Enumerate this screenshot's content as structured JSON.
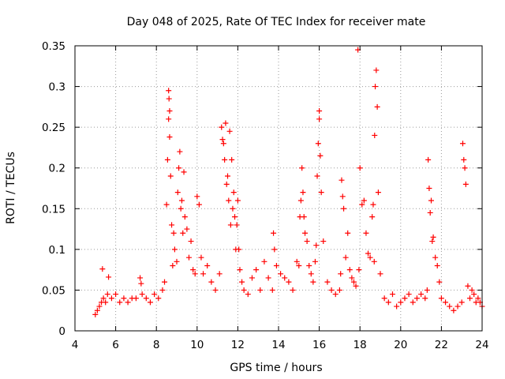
{
  "chart_data": {
    "type": "scatter",
    "title": "Day 048 of 2025, Rate Of TEC Index for receiver mate",
    "xlabel": "GPS time / hours",
    "ylabel": "ROTI / TECUs",
    "xlim": [
      4,
      24
    ],
    "ylim": [
      0,
      0.35
    ],
    "xticks": [
      4,
      6,
      8,
      10,
      12,
      14,
      16,
      18,
      20,
      22,
      24
    ],
    "yticks": [
      0,
      0.05,
      0.1,
      0.15,
      0.2,
      0.25,
      0.3,
      0.35
    ],
    "xtick_labels": [
      "4",
      "6",
      "8",
      "10",
      "12",
      "14",
      "16",
      "18",
      "20",
      "22",
      "24"
    ],
    "ytick_labels": [
      "0",
      "0.05",
      "0.1",
      "0.15",
      "0.2",
      "0.25",
      "0.3",
      "0.35"
    ],
    "grid": true,
    "marker": "+",
    "color": "#ff0000",
    "series": [
      {
        "name": "ROTI",
        "x": [
          5.0,
          5.1,
          5.2,
          5.3,
          5.35,
          5.4,
          5.5,
          5.6,
          5.65,
          5.8,
          6.0,
          6.2,
          6.4,
          6.6,
          6.8,
          7.0,
          7.2,
          7.25,
          7.3,
          7.5,
          7.7,
          7.9,
          8.1,
          8.3,
          8.4,
          8.5,
          8.55,
          8.6,
          8.6,
          8.62,
          8.65,
          8.65,
          8.7,
          8.75,
          8.8,
          8.85,
          8.9,
          9.0,
          9.05,
          9.1,
          9.15,
          9.2,
          9.25,
          9.3,
          9.35,
          9.4,
          9.5,
          9.6,
          9.7,
          9.8,
          9.9,
          10.0,
          10.1,
          10.2,
          10.3,
          10.5,
          10.7,
          10.9,
          11.1,
          11.2,
          11.25,
          11.3,
          11.35,
          11.4,
          11.45,
          11.5,
          11.55,
          11.6,
          11.65,
          11.7,
          11.75,
          11.8,
          11.85,
          11.9,
          11.95,
          12.0,
          12.05,
          12.1,
          12.2,
          12.3,
          12.5,
          12.7,
          12.9,
          13.1,
          13.3,
          13.5,
          13.7,
          13.75,
          13.8,
          13.9,
          14.1,
          14.3,
          14.5,
          14.7,
          14.9,
          15.0,
          15.05,
          15.1,
          15.15,
          15.2,
          15.25,
          15.3,
          15.4,
          15.5,
          15.6,
          15.7,
          15.8,
          15.85,
          15.9,
          15.95,
          16.0,
          16.0,
          16.05,
          16.1,
          16.2,
          16.4,
          16.6,
          16.8,
          17.0,
          17.05,
          17.1,
          17.15,
          17.2,
          17.3,
          17.4,
          17.5,
          17.6,
          17.7,
          17.8,
          17.9,
          17.95,
          18.0,
          18.1,
          18.2,
          18.3,
          18.4,
          18.5,
          18.6,
          18.65,
          18.7,
          18.72,
          18.75,
          18.8,
          18.85,
          18.9,
          19.0,
          19.2,
          19.4,
          19.6,
          19.8,
          20.0,
          20.2,
          20.4,
          20.6,
          20.8,
          21.0,
          21.2,
          21.3,
          21.35,
          21.4,
          21.45,
          21.5,
          21.55,
          21.6,
          21.7,
          21.8,
          21.9,
          22.0,
          22.2,
          22.4,
          22.6,
          22.8,
          23.0,
          23.05,
          23.1,
          23.15,
          23.2,
          23.3,
          23.4,
          23.5,
          23.6,
          23.7,
          23.8,
          23.9,
          24.0
        ],
        "y": [
          0.02,
          0.025,
          0.03,
          0.035,
          0.076,
          0.04,
          0.035,
          0.045,
          0.066,
          0.04,
          0.045,
          0.035,
          0.04,
          0.035,
          0.04,
          0.04,
          0.065,
          0.058,
          0.045,
          0.04,
          0.035,
          0.045,
          0.04,
          0.05,
          0.06,
          0.155,
          0.21,
          0.26,
          0.295,
          0.285,
          0.27,
          0.238,
          0.19,
          0.13,
          0.08,
          0.12,
          0.1,
          0.085,
          0.17,
          0.2,
          0.22,
          0.15,
          0.16,
          0.12,
          0.195,
          0.14,
          0.125,
          0.09,
          0.11,
          0.075,
          0.07,
          0.165,
          0.155,
          0.09,
          0.07,
          0.08,
          0.06,
          0.05,
          0.07,
          0.25,
          0.235,
          0.23,
          0.21,
          0.255,
          0.18,
          0.19,
          0.16,
          0.245,
          0.13,
          0.21,
          0.15,
          0.17,
          0.14,
          0.1,
          0.13,
          0.16,
          0.1,
          0.075,
          0.06,
          0.05,
          0.045,
          0.065,
          0.075,
          0.05,
          0.085,
          0.065,
          0.05,
          0.12,
          0.1,
          0.08,
          0.07,
          0.065,
          0.06,
          0.05,
          0.085,
          0.08,
          0.14,
          0.16,
          0.2,
          0.17,
          0.14,
          0.12,
          0.11,
          0.08,
          0.07,
          0.06,
          0.085,
          0.105,
          0.19,
          0.23,
          0.27,
          0.26,
          0.215,
          0.17,
          0.11,
          0.06,
          0.05,
          0.045,
          0.05,
          0.07,
          0.185,
          0.165,
          0.15,
          0.09,
          0.12,
          0.075,
          0.065,
          0.06,
          0.055,
          0.345,
          0.075,
          0.2,
          0.155,
          0.16,
          0.12,
          0.095,
          0.09,
          0.14,
          0.155,
          0.085,
          0.24,
          0.3,
          0.32,
          0.275,
          0.17,
          0.07,
          0.04,
          0.035,
          0.045,
          0.03,
          0.035,
          0.04,
          0.045,
          0.035,
          0.04,
          0.045,
          0.04,
          0.05,
          0.21,
          0.175,
          0.145,
          0.16,
          0.11,
          0.115,
          0.09,
          0.08,
          0.06,
          0.04,
          0.035,
          0.03,
          0.025,
          0.03,
          0.035,
          0.23,
          0.21,
          0.2,
          0.18,
          0.055,
          0.04,
          0.05,
          0.045,
          0.035,
          0.04,
          0.035,
          0.03
        ]
      }
    ]
  }
}
